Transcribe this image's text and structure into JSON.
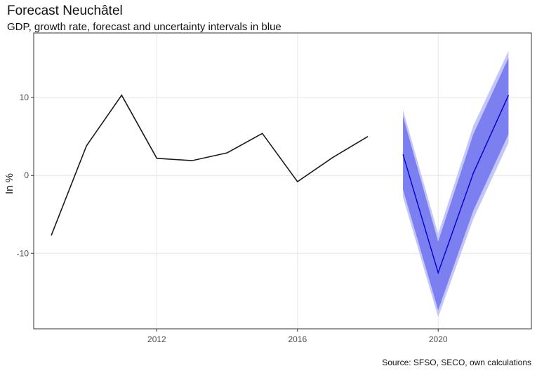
{
  "title": "Forecast Neuchâtel",
  "subtitle": "GDP, growth rate, forecast and uncertainty intervals in blue",
  "caption": "Source: SFSO, SECO, own calculations",
  "colors": {
    "history_line": "#1a1a1a",
    "forecast_line": "#0000cc",
    "inner_band": "#7b7ff0",
    "outer_band": "#c4c6f8",
    "grid": "#e6e6e6",
    "panel_border": "#333333"
  },
  "chart_data": {
    "type": "line",
    "title": "Forecast Neuchâtel",
    "subtitle": "GDP, growth rate, forecast and uncertainty intervals in blue",
    "xlabel": "",
    "ylabel": "In %",
    "xlim": [
      2008.5,
      2022.65
    ],
    "ylim": [
      -19.7,
      18.3
    ],
    "xticks": [
      2012,
      2016,
      2020
    ],
    "xtick_labels": [
      "2012",
      "2016",
      "2020"
    ],
    "yticks": [
      -10,
      0,
      10
    ],
    "ytick_labels": [
      "-10",
      "0",
      "10"
    ],
    "grid": true,
    "series": [
      {
        "x": [
          2009,
          2010,
          2011,
          2012,
          2013,
          2014,
          2015,
          2016,
          2017,
          2018
        ],
        "values": [
          -7.7,
          3.8,
          10.3,
          2.2,
          1.9,
          2.9,
          5.4,
          -0.8,
          2.3,
          5.0
        ]
      },
      {
        "x": [
          2019,
          2020,
          2021,
          2022
        ],
        "values": [
          2.7,
          -12.5,
          0.3,
          10.3
        ]
      }
    ],
    "intervals": [
      {
        "x": [
          2019,
          2020,
          2021,
          2022
        ],
        "lower": [
          -1.8,
          -17.3,
          -4.5,
          5.3
        ],
        "upper": [
          7.6,
          -8.5,
          5.3,
          15.1
        ]
      },
      {
        "x": [
          2019,
          2020,
          2021,
          2022
        ],
        "lower": [
          -2.8,
          -18.2,
          -5.6,
          4.2
        ],
        "upper": [
          8.4,
          -7.5,
          6.4,
          16.0
        ]
      }
    ]
  }
}
